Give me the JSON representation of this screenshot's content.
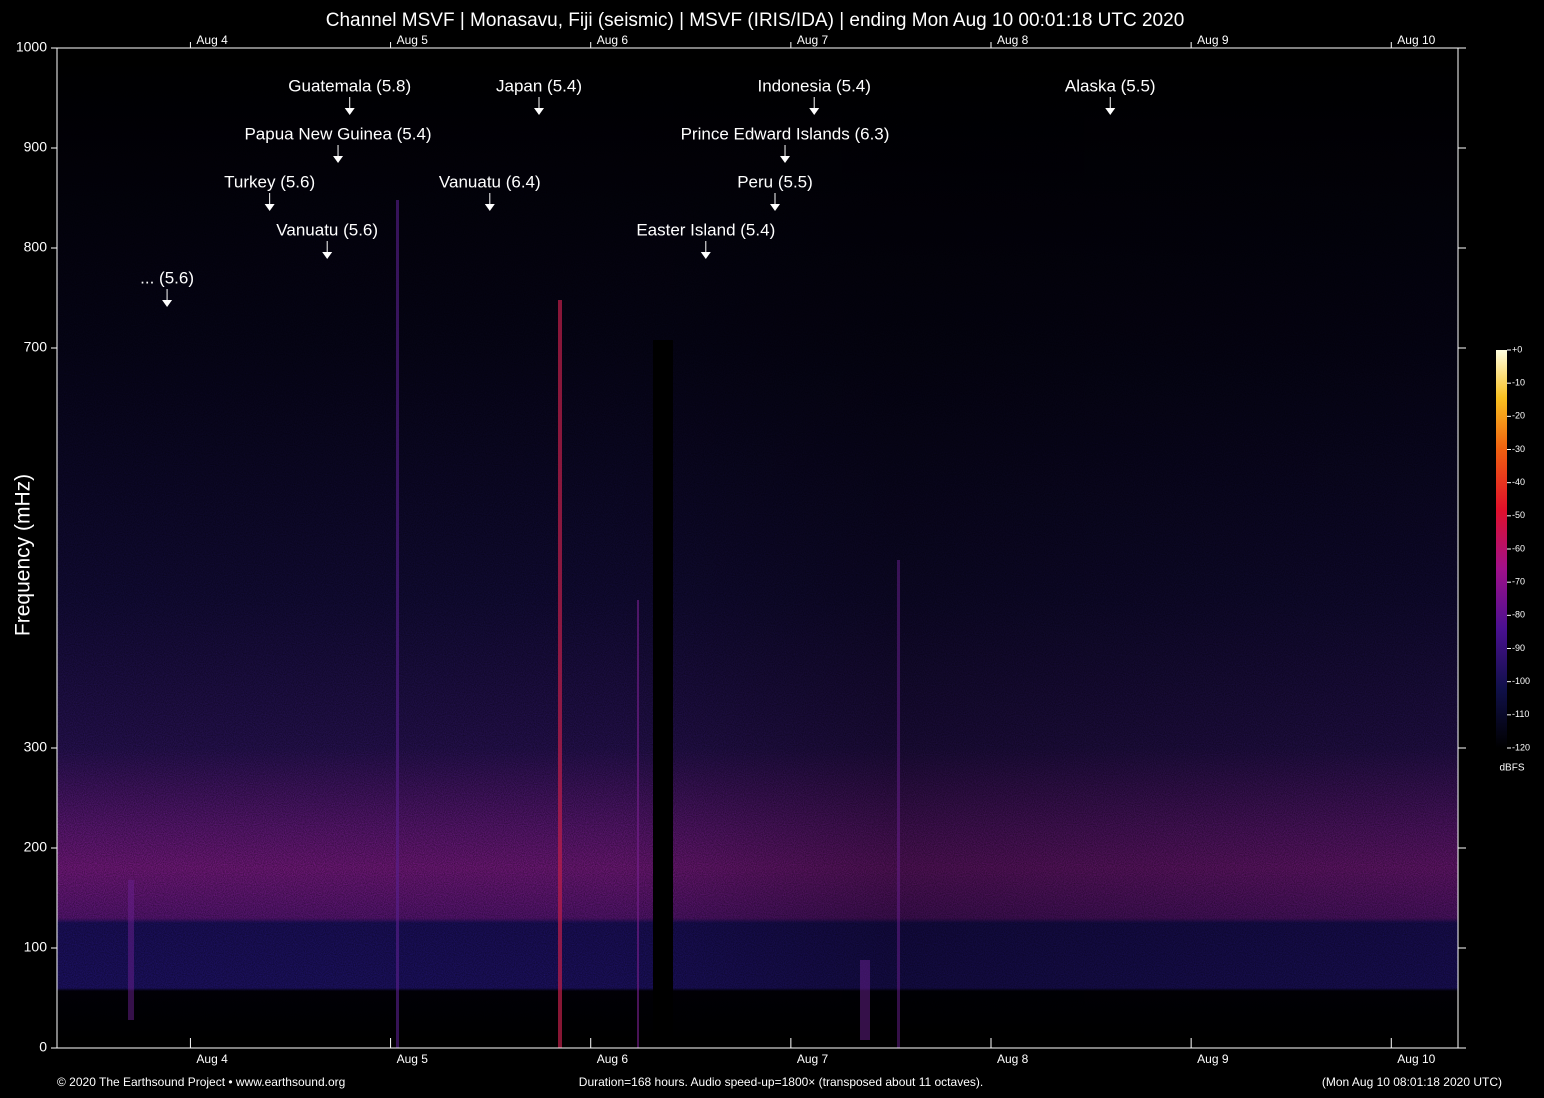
{
  "chart_data": {
    "type": "spectrogram",
    "title": "Channel MSVF | Monasavu, Fiji (seismic) | MSVF (IRIS/IDA) | ending Mon Aug 10 00:01:18 UTC 2020",
    "y_label": "Frequency (mHz)",
    "xlim": [
      0,
      168
    ],
    "xticks": [
      {
        "value": 16,
        "label": "Aug 4"
      },
      {
        "value": 40,
        "label": "Aug 5"
      },
      {
        "value": 64,
        "label": "Aug 6"
      },
      {
        "value": 88,
        "label": "Aug 7"
      },
      {
        "value": 112,
        "label": "Aug 8"
      },
      {
        "value": 136,
        "label": "Aug 9"
      },
      {
        "value": 160,
        "label": "Aug 10"
      }
    ],
    "ylim": [
      0,
      1000
    ],
    "yticks": [
      0,
      100,
      200,
      300,
      700,
      800,
      900,
      1000
    ],
    "annotations": [
      {
        "text": "Guatemala (5.8)",
        "x": 35.1,
        "y": 933
      },
      {
        "text": "Papua New Guinea (5.4)",
        "x": 33.7,
        "y": 885
      },
      {
        "text": "Turkey (5.6)",
        "x": 25.5,
        "y": 837
      },
      {
        "text": "Vanuatu (5.6)",
        "x": 32.4,
        "y": 789
      },
      {
        "text": "... (5.6)",
        "x": 13.2,
        "y": 741
      },
      {
        "text": "Japan (5.4)",
        "x": 57.8,
        "y": 933
      },
      {
        "text": "Vanuatu (6.4)",
        "x": 51.9,
        "y": 837
      },
      {
        "text": "Indonesia (5.4)",
        "x": 90.8,
        "y": 933
      },
      {
        "text": "Prince Edward Islands (6.3)",
        "x": 87.3,
        "y": 885
      },
      {
        "text": "Peru (5.5)",
        "x": 86.1,
        "y": 837
      },
      {
        "text": "Easter Island (5.4)",
        "x": 77.8,
        "y": 789
      },
      {
        "text": "Alaska (5.5)",
        "x": 126.3,
        "y": 933
      }
    ],
    "colorbar": {
      "label": "dBFS",
      "lim": [
        -120,
        0
      ],
      "ticks": [
        {
          "value": 0,
          "label": "+0"
        },
        -10,
        -20,
        -30,
        -40,
        -50,
        -60,
        -70,
        -80,
        -90,
        -100,
        -110,
        -120
      ]
    },
    "footer": {
      "left": "© 2020 The Earthsound Project • www.earthsound.org",
      "center": "Duration=168 hours. Audio speed-up=1800× (transposed about 11 octaves).",
      "right": "(Mon Aug 10 08:01:18 2020 UTC)"
    }
  }
}
